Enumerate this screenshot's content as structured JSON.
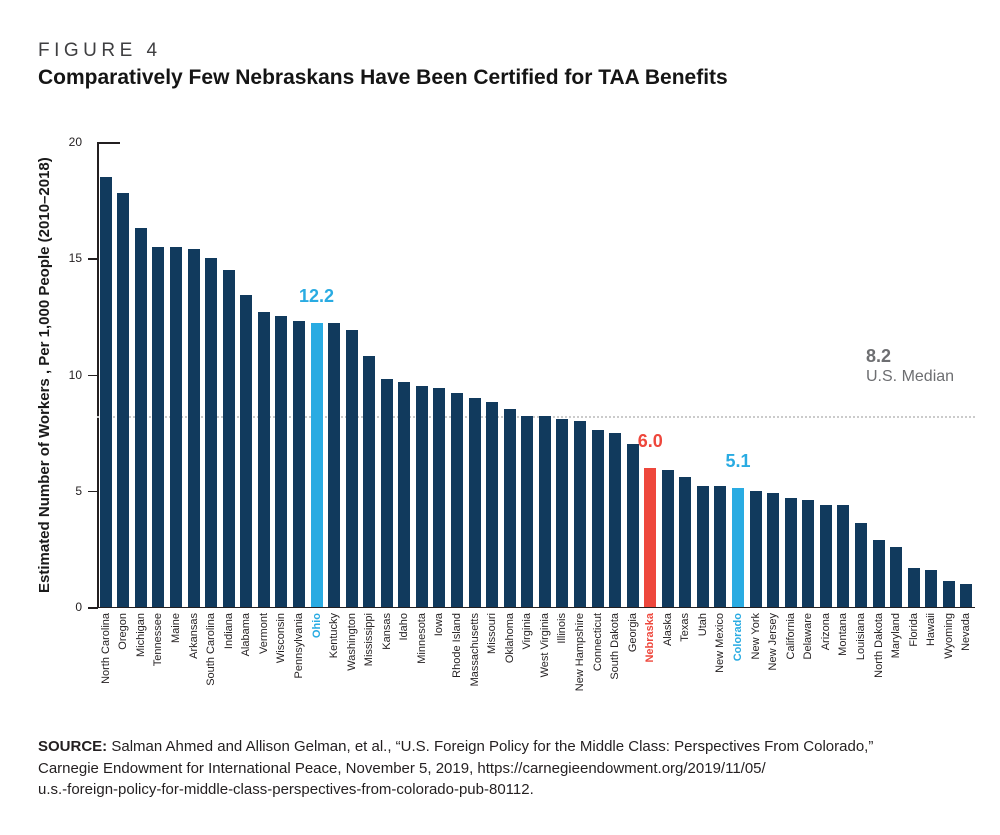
{
  "figure": {
    "kicker": "FIGURE 4",
    "title": "Comparatively Few Nebraskans Have Been Certified for TAA Benefits"
  },
  "chart_data": {
    "type": "bar",
    "title": "Comparatively Few Nebraskans Have Been Certified for TAA Benefits",
    "xlabel": "",
    "ylabel": "Estimated Number of Workers , Per 1,000 People (2010–2018)",
    "ylim": [
      0,
      20
    ],
    "yticks": [
      0,
      5,
      10,
      15,
      20
    ],
    "grid": "off",
    "categories": [
      "North Carolina",
      "Oregon",
      "Michigan",
      "Tennessee",
      "Maine",
      "Arkansas",
      "South Carolina",
      "Indiana",
      "Alabama",
      "Vermont",
      "Wisconsin",
      "Pennsylvania",
      "Ohio",
      "Kentucky",
      "Washington",
      "Mississippi",
      "Kansas",
      "Idaho",
      "Minnesota",
      "Iowa",
      "Rhode Island",
      "Massachusetts",
      "Missouri",
      "Oklahoma",
      "Virginia",
      "West Virginia",
      "Illinois",
      "New Hampshire",
      "Connecticut",
      "South Dakota",
      "Georgia",
      "Nebraska",
      "Alaska",
      "Texas",
      "Utah",
      "New Mexico",
      "Colorado",
      "New York",
      "New Jersey",
      "California",
      "Delaware",
      "Arizona",
      "Montana",
      "Louisiana",
      "North Dakota",
      "Maryland",
      "Florida",
      "Hawaii",
      "Wyoming",
      "Nevada"
    ],
    "values": [
      18.5,
      17.8,
      16.3,
      15.5,
      15.5,
      15.4,
      15.0,
      14.5,
      13.4,
      12.7,
      12.5,
      12.3,
      12.2,
      12.2,
      11.9,
      10.8,
      9.8,
      9.7,
      9.5,
      9.4,
      9.2,
      9.0,
      8.8,
      8.5,
      8.2,
      8.2,
      8.1,
      8.0,
      7.6,
      7.5,
      7.0,
      6.0,
      5.9,
      5.6,
      5.2,
      5.2,
      5.1,
      5.0,
      4.9,
      4.7,
      4.6,
      4.4,
      4.4,
      3.6,
      2.9,
      2.6,
      1.7,
      1.6,
      1.1,
      1.0
    ],
    "highlights": {
      "Ohio": {
        "color": "highlight_blue",
        "label": "12.2"
      },
      "Nebraska": {
        "color": "highlight_red",
        "label": "6.0"
      },
      "Colorado": {
        "color": "highlight_blue",
        "label": "5.1"
      }
    },
    "median": {
      "value": 8.2,
      "label_value": "8.2",
      "label_text": "U.S. Median"
    },
    "colors": {
      "bar": "#113A5D",
      "highlight_blue": "#29ABE2",
      "highlight_red": "#EE473C",
      "median_text": "#6D6E71",
      "median_line": "#CBCBCB",
      "axis": "#231F20"
    },
    "legend": "none"
  },
  "source": {
    "label": "SOURCE:",
    "lines": [
      "Salman Ahmed and Allison Gelman, et al., “U.S. Foreign Policy for the Middle Class: Perspectives From Colorado,”",
      "Carnegie Endowment for International Peace, November 5, 2019, https://carnegieendowment.org/2019/11/05/",
      "u.s.-foreign-policy-for-middle-class-perspectives-from-colorado-pub-80112."
    ]
  }
}
